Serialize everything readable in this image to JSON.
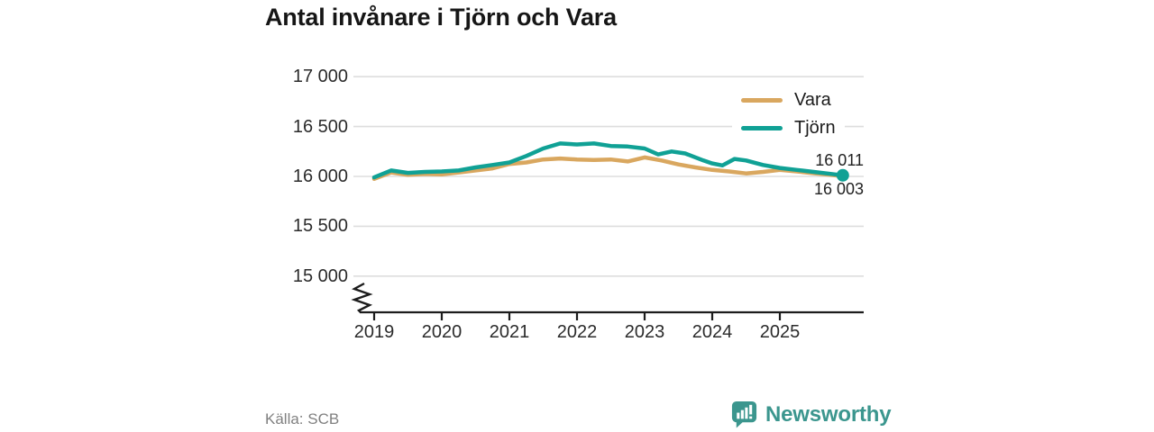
{
  "header": {
    "title": "Antal invånare i Tjörn och Vara"
  },
  "chart_data": {
    "type": "line",
    "title": "Antal invånare i Tjörn och Vara",
    "x_axis": {
      "tick_labels": [
        "2019",
        "2020",
        "2021",
        "2022",
        "2023",
        "2024",
        "2025"
      ],
      "tick_years": [
        2019,
        2020,
        2021,
        2022,
        2023,
        2024,
        2025
      ],
      "range": [
        2019,
        2026.25
      ],
      "axis_break_symbol": true
    },
    "y_axis": {
      "tick_labels": [
        "17 000",
        "16 500",
        "16 000",
        "15 500",
        "15 000"
      ],
      "tick_values": [
        17000,
        16500,
        16000,
        15500,
        15000
      ],
      "range": [
        15000,
        17000
      ],
      "gridlines": true
    },
    "legend": {
      "position": "top-right",
      "entries": [
        {
          "label": "Vara"
        },
        {
          "label": "Tjörn"
        }
      ]
    },
    "series": [
      {
        "name": "Vara",
        "color": "#d9a75f",
        "end_dot": false,
        "points": [
          [
            2019.0,
            15975
          ],
          [
            2019.25,
            16040
          ],
          [
            2019.5,
            16015
          ],
          [
            2019.75,
            16025
          ],
          [
            2020.0,
            16020
          ],
          [
            2020.25,
            16040
          ],
          [
            2020.5,
            16060
          ],
          [
            2020.75,
            16080
          ],
          [
            2021.0,
            16125
          ],
          [
            2021.25,
            16140
          ],
          [
            2021.5,
            16170
          ],
          [
            2021.75,
            16180
          ],
          [
            2022.0,
            16170
          ],
          [
            2022.25,
            16165
          ],
          [
            2022.5,
            16170
          ],
          [
            2022.75,
            16150
          ],
          [
            2023.0,
            16190
          ],
          [
            2023.25,
            16160
          ],
          [
            2023.5,
            16120
          ],
          [
            2023.75,
            16090
          ],
          [
            2024.0,
            16065
          ],
          [
            2024.25,
            16050
          ],
          [
            2024.5,
            16030
          ],
          [
            2024.75,
            16045
          ],
          [
            2025.0,
            16065
          ],
          [
            2025.25,
            16050
          ],
          [
            2025.5,
            16032
          ],
          [
            2025.75,
            16015
          ],
          [
            2025.93,
            16003
          ]
        ]
      },
      {
        "name": "Tjörn",
        "color": "#10a195",
        "end_dot": true,
        "points": [
          [
            2019.0,
            15990
          ],
          [
            2019.25,
            16060
          ],
          [
            2019.5,
            16035
          ],
          [
            2019.75,
            16045
          ],
          [
            2020.0,
            16050
          ],
          [
            2020.25,
            16060
          ],
          [
            2020.5,
            16090
          ],
          [
            2020.75,
            16115
          ],
          [
            2021.0,
            16140
          ],
          [
            2021.25,
            16205
          ],
          [
            2021.5,
            16280
          ],
          [
            2021.75,
            16330
          ],
          [
            2022.0,
            16320
          ],
          [
            2022.25,
            16330
          ],
          [
            2022.5,
            16305
          ],
          [
            2022.75,
            16300
          ],
          [
            2023.0,
            16280
          ],
          [
            2023.2,
            16220
          ],
          [
            2023.4,
            16250
          ],
          [
            2023.6,
            16230
          ],
          [
            2023.87,
            16160
          ],
          [
            2024.0,
            16130
          ],
          [
            2024.15,
            16110
          ],
          [
            2024.33,
            16175
          ],
          [
            2024.5,
            16160
          ],
          [
            2024.75,
            16115
          ],
          [
            2025.0,
            16085
          ],
          [
            2025.25,
            16065
          ],
          [
            2025.5,
            16045
          ],
          [
            2025.75,
            16025
          ],
          [
            2025.93,
            16011
          ]
        ]
      }
    ],
    "end_labels": {
      "tjorn": "16 011",
      "vara": "16 003"
    },
    "colors": {
      "gridline": "#dddddd",
      "axis": "#1c1c1c",
      "tick_text": "#2b2b2b"
    }
  },
  "footer": {
    "source": "Källa: SCB",
    "brand": "Newsworthy",
    "brand_color": "#3b968e",
    "brand_icon": "bar-chart-speech-bubble"
  }
}
